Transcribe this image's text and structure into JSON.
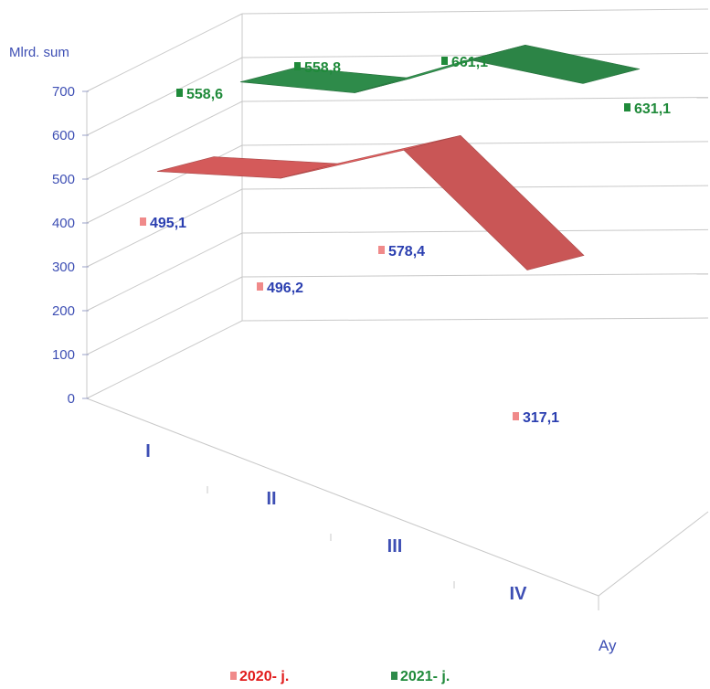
{
  "chart_data": {
    "type": "line",
    "style": "3d-ribbon",
    "categories": [
      "I",
      "II",
      "III",
      "IV"
    ],
    "ylabel": "Mlrd. sum",
    "xlabel": "Ay",
    "ylim": [
      0,
      700
    ],
    "yticks": [
      "0",
      "100",
      "200",
      "300",
      "400",
      "500",
      "600",
      "700"
    ],
    "grid": true,
    "legend_position": "bottom",
    "series": [
      {
        "name": "2020- j.",
        "values": [
          495.1,
          496.2,
          578.4,
          317.1
        ],
        "labels": [
          "495,1",
          "496,2",
          "578,4",
          "317,1"
        ],
        "color": "#d45a5a"
      },
      {
        "name": "2021- j.",
        "values": [
          558.6,
          558.8,
          661.1,
          631.1
        ],
        "labels": [
          "558,6",
          "558,8",
          "661,1",
          "631,1"
        ],
        "color": "#2e8b4a"
      }
    ],
    "value_label_color_2020": "#2b3fb0",
    "value_label_color_2021": "#1f8a3a",
    "legend_text_color_2020": "#e11b1b",
    "legend_text_color_2021": "#1f8a3a"
  }
}
